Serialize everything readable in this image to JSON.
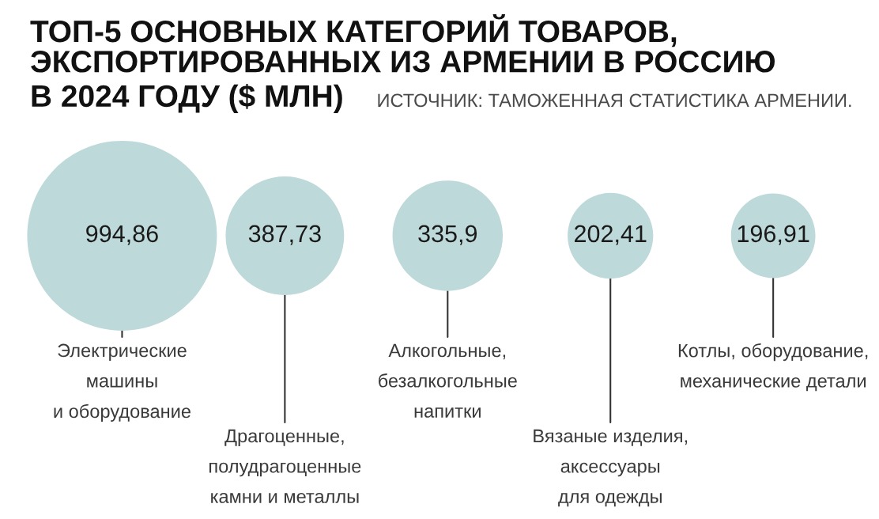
{
  "chart_data": {
    "type": "other",
    "title": "ТОП-5 ОСНОВНЫХ КАТЕГОРИЙ ТОВАРОВ,\nЭКСПОРТИРОВАННЫХ ИЗ АРМЕНИИ В РОССИЮ",
    "subtitle": "В 2024 ГОДУ ($ МЛН)",
    "annotations": [
      "ИСТОЧНИК: ТАМОЖЕННАЯ СТАТИСТИКА АРМЕНИИ."
    ],
    "categories": [
      "Электрические\nмашины\nи оборудование",
      "Драгоценные,\nполудрагоценные\nкамни и металлы",
      "Алкогольные,\nбезалкогольные\nнапитки",
      "Вязаные изделия,\nаксессуары\nдля одежды",
      "Котлы, оборудование,\nмеханические детали"
    ],
    "values": [
      994.86,
      387.73,
      335.9,
      202.41,
      196.91
    ],
    "value_labels": [
      "994,86",
      "387,73",
      "335,9",
      "202,41",
      "196,91"
    ],
    "color": "#bdd9da"
  }
}
